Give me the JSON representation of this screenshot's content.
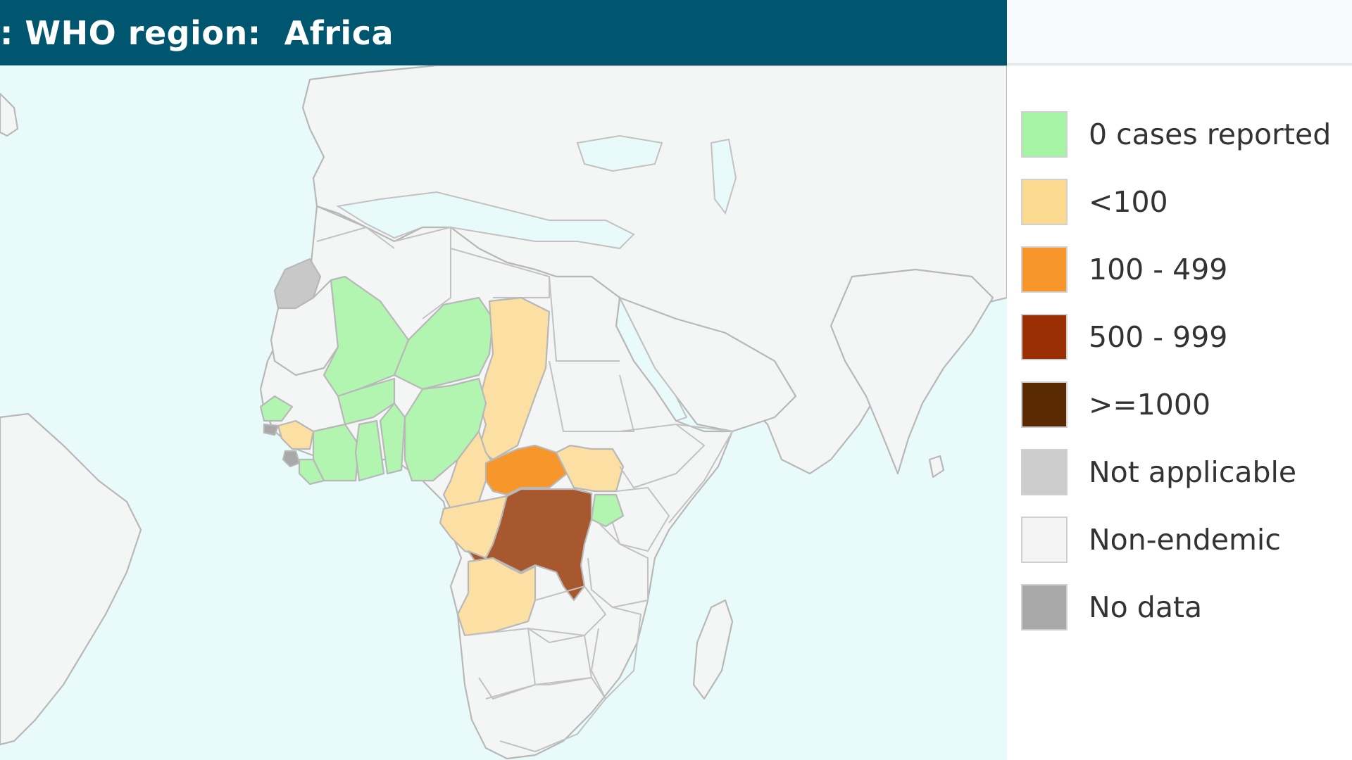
{
  "header": {
    "title": ": WHO region:  Africa"
  },
  "legend": {
    "items": [
      {
        "label": "0 cases reported",
        "color": "#a6f5a6"
      },
      {
        "label": "<100",
        "color": "#fbd98e"
      },
      {
        "label": "100 - 499",
        "color": "#f7962a"
      },
      {
        "label": "500 - 999",
        "color": "#9a2e04"
      },
      {
        "label": ">=1000",
        "color": "#5a2a02"
      },
      {
        "label": "Not applicable",
        "color": "#cccccc"
      },
      {
        "label": "Non-endemic",
        "color": "#f4f4f4"
      },
      {
        "label": "No data",
        "color": "#a8a8a8"
      }
    ]
  },
  "map": {
    "ocean_color": "#e8fafa",
    "land_color": "#f4f5f5",
    "dr_congo_color": "#a8582e",
    "car_color": "#f7962a"
  }
}
